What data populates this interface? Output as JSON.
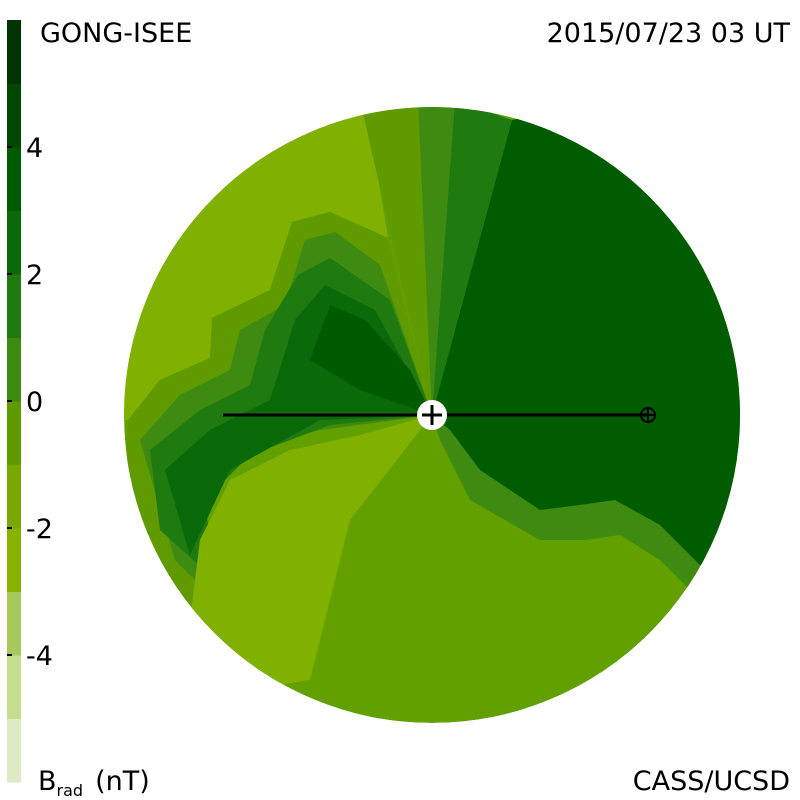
{
  "chart_data": {
    "type": "colorbar",
    "title": "GONG-ISEE",
    "subtitle": "2015/07/23 03 UT",
    "credit": "CASS/UCSD",
    "colorbar_label": {
      "symbol": "B",
      "subscript": "rad",
      "unit": "(nT)"
    },
    "clim": [
      -6,
      6
    ],
    "ticks": [
      4,
      2,
      0,
      -2,
      -4
    ],
    "colors": [
      "#dfeac4",
      "#c6dc8e",
      "#a6c95a",
      "#88b200",
      "#78a800",
      "#5e9a00",
      "#3f8a10",
      "#1f7a10",
      "#0a6a0a",
      "#005a00",
      "#004800",
      "#003300"
    ]
  }
}
